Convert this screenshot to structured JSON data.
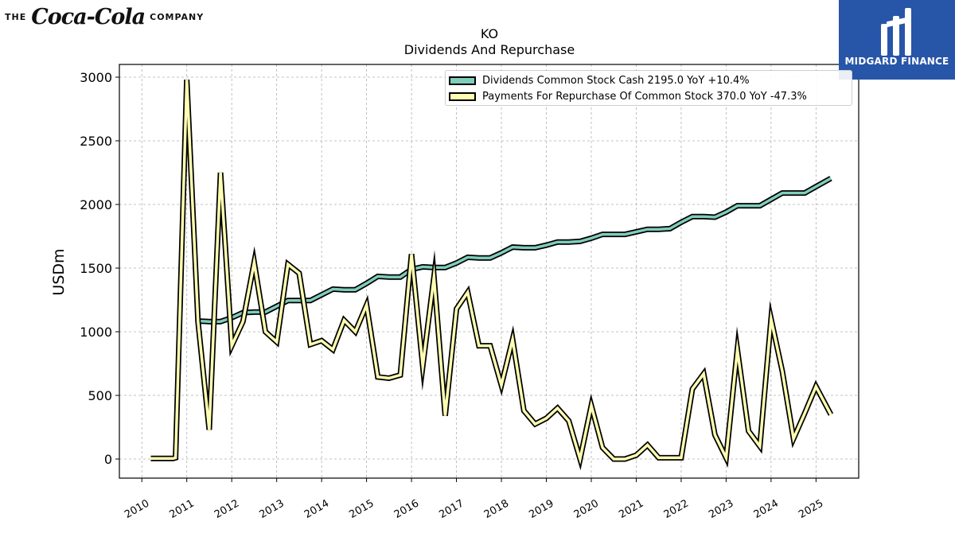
{
  "header": {
    "company_prefix": "THE",
    "brand": "Coca-Cola",
    "company_suffix": "COMPANY"
  },
  "badge": {
    "text": "MIDGARD FINANCE",
    "color": "#2755a8"
  },
  "chart_data": {
    "type": "line",
    "title": "KO",
    "subtitle": "Dividends And Repurchase",
    "ylabel": "USDm",
    "xlabel": "",
    "xlim": [
      2009.5,
      2025.95
    ],
    "ylim": [
      -150,
      3100
    ],
    "yticks": [
      0,
      500,
      1000,
      1500,
      2000,
      2500,
      3000
    ],
    "xticks": [
      "2010",
      "2011",
      "2012",
      "2013",
      "2014",
      "2015",
      "2016",
      "2017",
      "2018",
      "2019",
      "2020",
      "2021",
      "2022",
      "2023",
      "2024",
      "2025"
    ],
    "grid": true,
    "legend_position": "top-right",
    "series": [
      {
        "name": "Dividends Common Stock Cash",
        "legend": "Dividends Common Stock Cash  2195.0 YoY +10.4%",
        "color": "#7fcdbb",
        "x": [
          2011.2,
          2011.5,
          2011.75,
          2012.0,
          2012.25,
          2012.5,
          2012.75,
          2013.0,
          2013.25,
          2013.5,
          2013.75,
          2014.0,
          2014.25,
          2014.5,
          2014.75,
          2015.0,
          2015.25,
          2015.5,
          2015.75,
          2016.0,
          2016.25,
          2016.5,
          2016.75,
          2017.0,
          2017.25,
          2017.5,
          2017.75,
          2018.0,
          2018.25,
          2018.5,
          2018.75,
          2019.0,
          2019.25,
          2019.5,
          2019.75,
          2020.0,
          2020.25,
          2020.5,
          2020.75,
          2021.0,
          2021.25,
          2021.5,
          2021.75,
          2022.0,
          2022.25,
          2022.5,
          2022.75,
          2023.0,
          2023.25,
          2023.5,
          2023.75,
          2024.0,
          2024.25,
          2024.5,
          2024.75,
          2025.0,
          2025.33
        ],
        "values": [
          1085,
          1080,
          1080,
          1110,
          1150,
          1155,
          1155,
          1200,
          1245,
          1245,
          1245,
          1290,
          1335,
          1330,
          1330,
          1380,
          1435,
          1430,
          1430,
          1490,
          1510,
          1505,
          1505,
          1540,
          1585,
          1580,
          1580,
          1620,
          1665,
          1660,
          1660,
          1680,
          1705,
          1705,
          1710,
          1735,
          1765,
          1765,
          1765,
          1785,
          1805,
          1805,
          1810,
          1860,
          1905,
          1905,
          1900,
          1940,
          1990,
          1990,
          1990,
          2040,
          2090,
          2090,
          2090,
          2140,
          2205
        ]
      },
      {
        "name": "Payments For Repurchase Of Common Stock",
        "legend": "Payments For Repurchase Of Common Stock  370.0 YoY -47.3%",
        "color": "#ffffb2",
        "x": [
          2010.2,
          2010.45,
          2010.7,
          2010.75,
          2011.0,
          2011.25,
          2011.5,
          2011.75,
          2012.0,
          2012.25,
          2012.5,
          2012.75,
          2013.0,
          2013.25,
          2013.5,
          2013.75,
          2014.0,
          2014.25,
          2014.5,
          2014.75,
          2015.0,
          2015.25,
          2015.5,
          2015.75,
          2016.0,
          2016.25,
          2016.5,
          2016.75,
          2017.0,
          2017.25,
          2017.5,
          2017.75,
          2018.0,
          2018.25,
          2018.5,
          2018.75,
          2019.0,
          2019.25,
          2019.5,
          2019.75,
          2020.0,
          2020.25,
          2020.5,
          2020.75,
          2021.0,
          2021.25,
          2021.5,
          2021.75,
          2022.0,
          2022.25,
          2022.5,
          2022.75,
          2023.0,
          2023.25,
          2023.5,
          2023.75,
          2024.0,
          2024.25,
          2024.5,
          2024.75,
          2025.0,
          2025.33
        ],
        "values": [
          5,
          5,
          5,
          10,
          2980,
          1080,
          230,
          2250,
          890,
          1080,
          1545,
          1000,
          920,
          1530,
          1460,
          900,
          930,
          860,
          1090,
          1000,
          1210,
          645,
          635,
          660,
          1610,
          730,
          1430,
          340,
          1180,
          1310,
          890,
          890,
          580,
          940,
          380,
          275,
          320,
          400,
          300,
          0,
          420,
          90,
          0,
          0,
          30,
          110,
          10,
          10,
          10,
          550,
          670,
          190,
          10,
          860,
          220,
          100,
          1100,
          690,
          160,
          360,
          570,
          350
        ]
      }
    ]
  }
}
